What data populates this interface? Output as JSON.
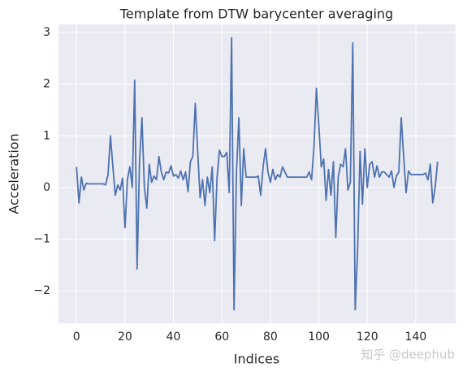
{
  "chart_data": {
    "type": "line",
    "title": "Template from DTW barycenter averaging",
    "x_label": "Indices",
    "y_label": "Acceleration",
    "watermark": "知乎 @deephub",
    "x": [
      0,
      1,
      2,
      3,
      4,
      5,
      6,
      7,
      8,
      9,
      10,
      11,
      12,
      13,
      14,
      15,
      16,
      17,
      18,
      19,
      20,
      21,
      22,
      23,
      24,
      25,
      26,
      27,
      28,
      29,
      30,
      31,
      32,
      33,
      34,
      35,
      36,
      37,
      38,
      39,
      40,
      41,
      42,
      43,
      44,
      45,
      46,
      47,
      48,
      49,
      50,
      51,
      52,
      53,
      54,
      55,
      56,
      57,
      58,
      59,
      60,
      61,
      62,
      63,
      64,
      65,
      66,
      67,
      68,
      69,
      70,
      71,
      72,
      73,
      74,
      75,
      76,
      77,
      78,
      79,
      80,
      81,
      82,
      83,
      84,
      85,
      86,
      87,
      88,
      89,
      90,
      91,
      92,
      93,
      94,
      95,
      96,
      97,
      98,
      99,
      100,
      101,
      102,
      103,
      104,
      105,
      106,
      107,
      108,
      109,
      110,
      111,
      112,
      113,
      114,
      115,
      116,
      117,
      118,
      119,
      120,
      121,
      122,
      123,
      124,
      125,
      126,
      127,
      128,
      129,
      130,
      131,
      132,
      133,
      134,
      135,
      136,
      137,
      138,
      139,
      140,
      141,
      142,
      143,
      144,
      145,
      146,
      147,
      148,
      149
    ],
    "series": [
      {
        "color": "#4c72b0",
        "values": [
          0.4,
          -0.3,
          0.2,
          -0.05,
          0.08,
          0.07,
          0.07,
          0.07,
          0.07,
          0.07,
          0.07,
          0.07,
          0.05,
          0.25,
          1.0,
          0.4,
          -0.15,
          0.05,
          -0.05,
          0.18,
          -0.78,
          0.15,
          0.4,
          0.0,
          2.08,
          -1.58,
          0.5,
          1.35,
          0.0,
          -0.4,
          0.45,
          0.1,
          0.22,
          0.15,
          0.6,
          0.3,
          0.15,
          0.3,
          0.28,
          0.42,
          0.22,
          0.25,
          0.18,
          0.32,
          0.15,
          0.3,
          -0.08,
          0.5,
          0.6,
          1.63,
          0.7,
          -0.2,
          0.15,
          -0.35,
          0.2,
          -0.1,
          0.4,
          -1.03,
          0.2,
          0.72,
          0.6,
          0.6,
          0.68,
          -0.1,
          2.9,
          -2.37,
          0.3,
          1.35,
          -0.35,
          0.75,
          0.2,
          0.2,
          0.2,
          0.2,
          0.2,
          0.22,
          -0.15,
          0.4,
          0.75,
          0.3,
          0.1,
          0.35,
          0.15,
          0.25,
          0.2,
          0.4,
          0.3,
          0.2,
          0.2,
          0.2,
          0.2,
          0.2,
          0.2,
          0.2,
          0.2,
          0.2,
          0.3,
          0.15,
          0.8,
          1.92,
          1.2,
          0.4,
          0.55,
          -0.25,
          0.35,
          -0.15,
          0.5,
          -0.97,
          0.2,
          0.45,
          0.4,
          0.75,
          -0.05,
          0.1,
          2.8,
          -2.37,
          -1.2,
          0.7,
          -0.32,
          0.75,
          0.0,
          0.45,
          0.5,
          0.2,
          0.42,
          0.2,
          0.3,
          0.3,
          0.25,
          0.2,
          0.32,
          0.0,
          0.22,
          0.3,
          1.35,
          0.6,
          -0.1,
          0.32,
          0.25,
          0.25,
          0.25,
          0.25,
          0.25,
          0.25,
          0.28,
          0.15,
          0.45,
          -0.3,
          0.0,
          0.5
        ]
      }
    ],
    "xlim": [
      -7.45,
      156.45
    ],
    "ylim": [
      -2.63,
      3.16
    ],
    "xticks": [
      0,
      20,
      40,
      60,
      80,
      100,
      120,
      140
    ],
    "yticks": [
      {
        "value": -2,
        "label": "−2"
      },
      {
        "value": -1,
        "label": "−1"
      },
      0,
      1,
      2,
      3
    ],
    "grid": true
  }
}
